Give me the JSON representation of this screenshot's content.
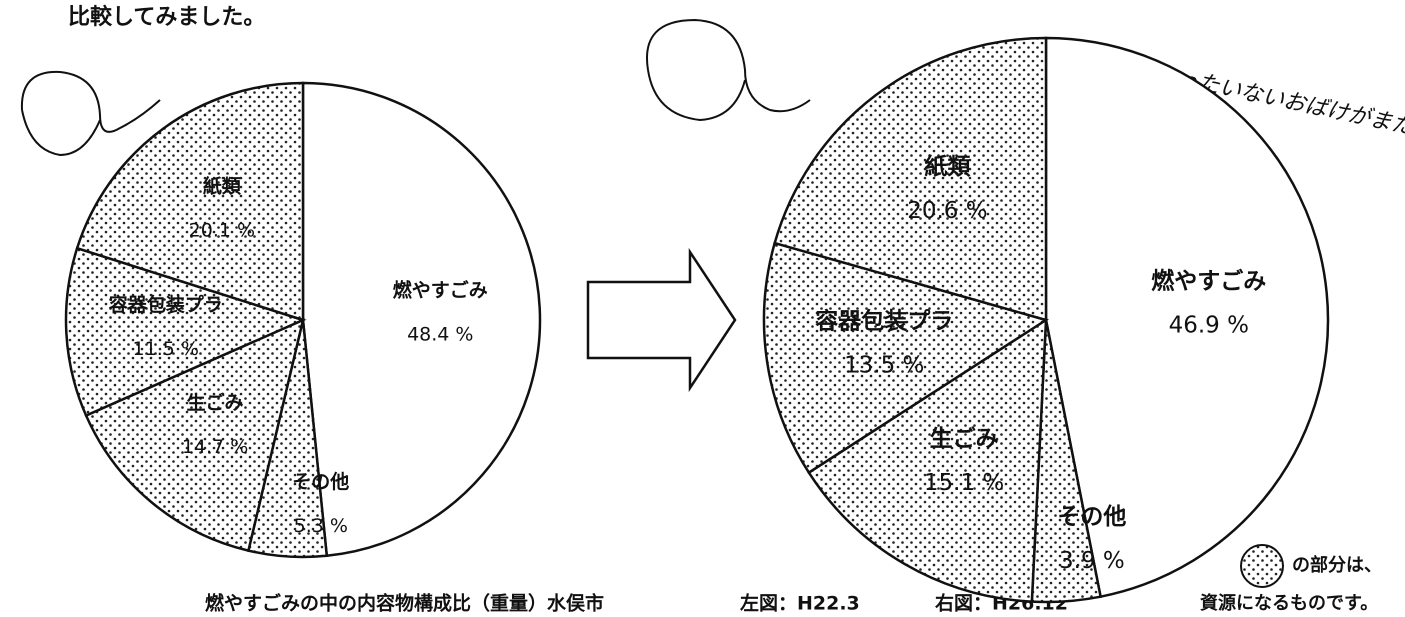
{
  "heading": "比較してみました。",
  "caption": [
    "燃やすごみの中の内容物構成比（重量）水俣市",
    "左図：H22.3",
    "右図：H26.12"
  ],
  "legend": [
    "の部分は、",
    "資源になるものです。"
  ],
  "chart_data": [
    {
      "type": "pie",
      "categories": [
        "燃やすごみ",
        "その他",
        "生ごみ",
        "容器包装プラ",
        "紙類"
      ],
      "values": [
        48.4,
        5.3,
        14.7,
        11.5,
        20.1
      ],
      "value_labels": [
        "48.4 %",
        "5.3 %",
        "14.7 %",
        "11.5 %",
        "20.1 %"
      ],
      "patterns": [
        "none",
        "dots",
        "dots",
        "dots",
        "dots"
      ]
    },
    {
      "type": "pie",
      "annotation": "ああ、もったいないおばけがまた出ちゃう〜",
      "categories": [
        "燃やすごみ",
        "その他",
        "生ごみ",
        "容器包装プラ",
        "紙類"
      ],
      "values": [
        46.9,
        3.9,
        15.1,
        13.5,
        20.6
      ],
      "value_labels": [
        "46.9 %",
        "3.9 %",
        "15.1 %",
        "13.5 %",
        "20.6 %"
      ],
      "patterns": [
        "none",
        "dots",
        "dots",
        "dots",
        "dots"
      ]
    }
  ]
}
